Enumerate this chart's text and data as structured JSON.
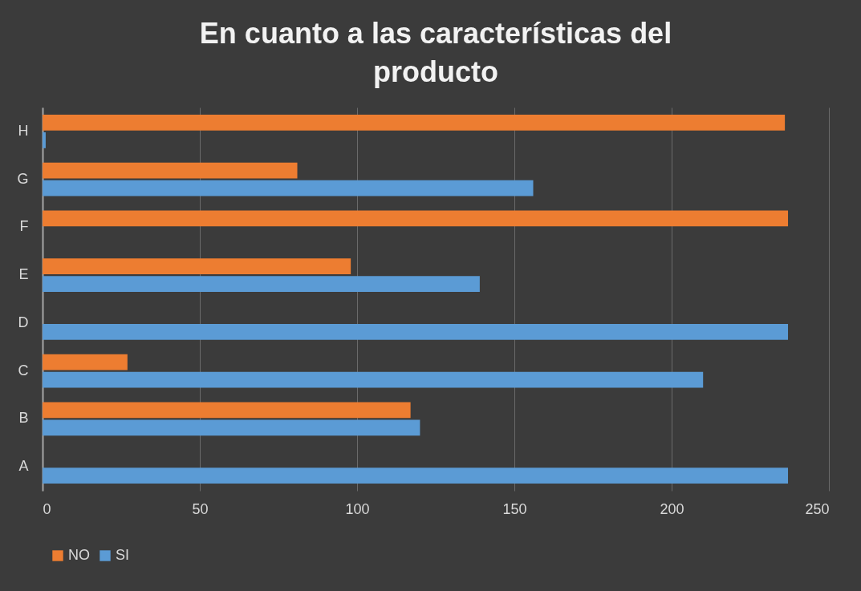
{
  "chart_data": {
    "type": "bar",
    "orientation": "horizontal",
    "title": "En cuanto a las características del producto",
    "categories": [
      "H",
      "G",
      "F",
      "E",
      "D",
      "C",
      "B",
      "A"
    ],
    "series": [
      {
        "name": "NO",
        "color": "#ed7d31",
        "values": [
          236,
          81,
          237,
          98,
          null,
          27,
          117,
          null
        ]
      },
      {
        "name": "SI",
        "color": "#5b9bd5",
        "values": [
          1,
          156,
          null,
          139,
          237,
          210,
          120,
          237
        ]
      }
    ],
    "xlim": [
      0,
      250
    ],
    "xticks": [
      0,
      50,
      100,
      150,
      200,
      250
    ],
    "grid": "x",
    "legend": "bottom"
  }
}
